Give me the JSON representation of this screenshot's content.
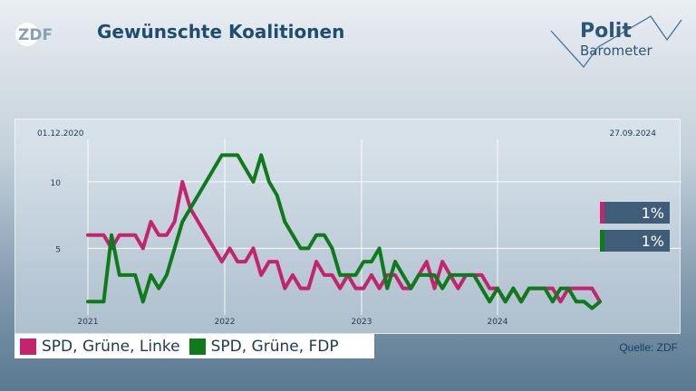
{
  "logo": {
    "text": "ZDF"
  },
  "title": "Gewünschte Koalitionen",
  "brand": {
    "line1": "Polit",
    "line2": "Barometer"
  },
  "source": "Quelle: ZDF",
  "chart_data": {
    "type": "line",
    "x_start_label": "01.12.2020",
    "x_end_label": "27.09.2024",
    "year_labels": [
      "2021",
      "2022",
      "2023",
      "2024"
    ],
    "y_ticks": [
      5,
      10
    ],
    "ylim": [
      0,
      14
    ],
    "grid": true,
    "series": [
      {
        "name": "SPD, Grüne, Linke",
        "color": "#c2246e",
        "latest_label": "1%",
        "values": [
          6,
          6,
          6,
          5,
          6,
          6,
          6,
          5,
          7,
          6,
          6,
          7,
          10,
          8,
          7,
          6,
          5,
          4,
          5,
          4,
          4,
          5,
          3,
          4,
          4,
          2,
          3,
          2,
          2,
          4,
          3,
          3,
          2,
          3,
          2,
          2,
          3,
          2,
          3,
          3,
          2,
          2,
          3,
          4,
          2,
          4,
          3,
          2,
          3,
          3,
          3,
          2,
          2,
          1,
          2,
          1,
          2,
          2,
          2,
          2,
          1,
          2,
          2,
          2,
          2,
          1
        ]
      },
      {
        "name": "SPD, Grüne, FDP",
        "color": "#0e7a1a",
        "latest_label": "1%",
        "values": [
          1,
          1,
          1,
          6,
          3,
          3,
          3,
          1,
          3,
          2,
          3,
          5,
          7,
          8,
          9,
          10,
          11,
          12,
          12,
          12,
          11,
          10,
          12,
          10,
          9,
          7,
          6,
          5,
          5,
          6,
          6,
          5,
          3,
          3,
          3,
          4,
          4,
          5,
          2,
          4,
          3,
          2,
          3,
          3,
          3,
          2,
          3,
          3,
          3,
          3,
          2,
          1,
          2,
          1,
          2,
          1,
          2,
          2,
          2,
          1,
          2,
          2,
          1,
          1,
          0.5,
          1
        ]
      }
    ]
  }
}
